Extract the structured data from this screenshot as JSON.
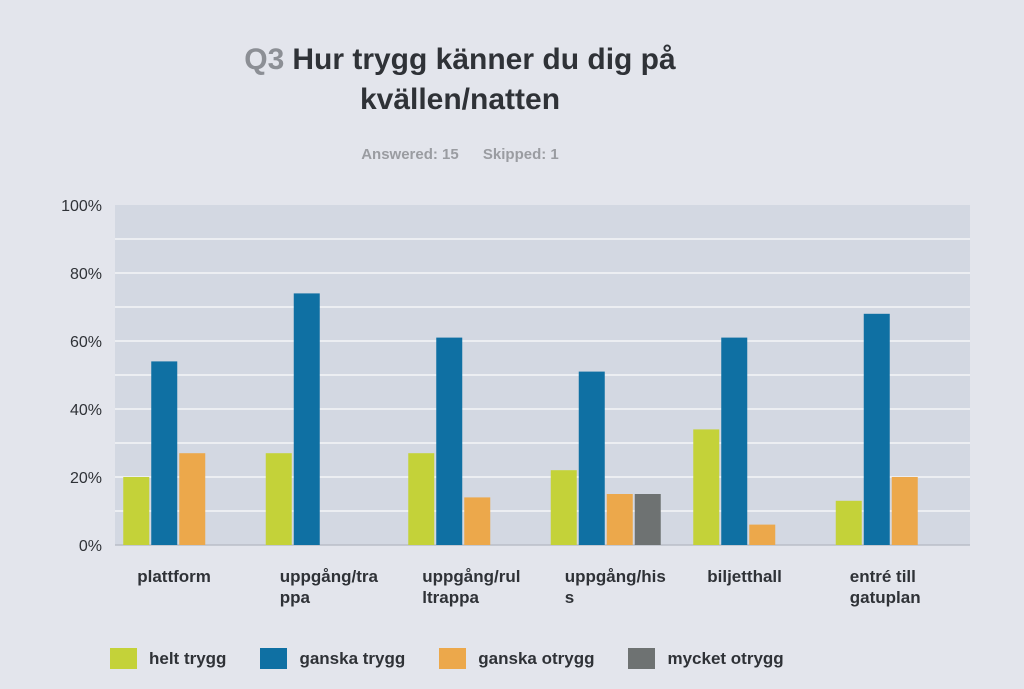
{
  "header": {
    "question_number": "Q3",
    "title": "Hur trygg känner du dig på kvällen/natten",
    "answered": "Answered: 15",
    "skipped": "Skipped: 1"
  },
  "colors": {
    "helt_trygg": "#c4d239",
    "ganska_trygg": "#0f70a3",
    "ganska_otrygg": "#eca84b",
    "mycket_otrygg": "#6e7272",
    "plot_bg": "#d3d8e2",
    "grid": "#eceef2"
  },
  "chart_data": {
    "type": "bar",
    "title": "Hur trygg känner du dig på kvällen/natten",
    "categories": [
      [
        "plattform"
      ],
      [
        "uppgång/tra",
        "ppa"
      ],
      [
        "uppgång/rul",
        "ltrappa"
      ],
      [
        "uppgång/his",
        "s"
      ],
      [
        "biljetthall"
      ],
      [
        "entré till",
        "gatuplan"
      ]
    ],
    "series": [
      {
        "name": "helt trygg",
        "color": "#c4d239",
        "values": [
          20,
          27,
          27,
          22,
          34,
          13
        ]
      },
      {
        "name": "ganska trygg",
        "color": "#0f70a3",
        "values": [
          54,
          74,
          61,
          51,
          61,
          68
        ]
      },
      {
        "name": "ganska otrygg",
        "color": "#eca84b",
        "values": [
          27,
          0,
          14,
          15,
          6,
          20
        ]
      },
      {
        "name": "mycket otrygg",
        "color": "#6e7272",
        "values": [
          0,
          0,
          0,
          15,
          0,
          0
        ]
      }
    ],
    "yticks": [
      "0%",
      "20%",
      "40%",
      "60%",
      "80%",
      "100%"
    ],
    "ylim": [
      0,
      100
    ],
    "grid": true,
    "legend": "bottom"
  }
}
